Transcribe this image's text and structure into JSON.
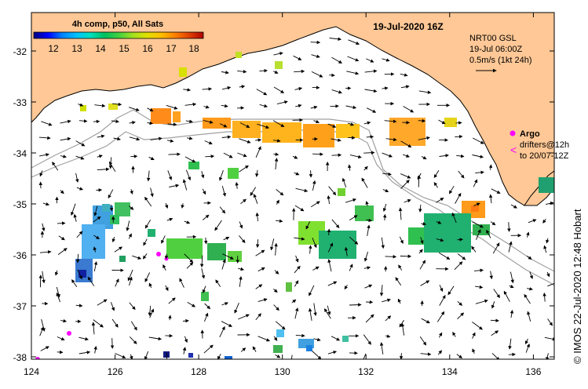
{
  "title": "19-Jul-2020 16Z",
  "legend": {
    "title": "4h comp, p50, All Sats",
    "ticks": [
      "12",
      "13",
      "14",
      "15",
      "16",
      "17",
      "18"
    ],
    "colors": [
      "#000080",
      "#0000ff",
      "#0080ff",
      "#00c0ff",
      "#00e0c0",
      "#00c060",
      "#40d040",
      "#a0e020",
      "#e0e000",
      "#ffc000",
      "#ff8000",
      "#e04000",
      "#b00000"
    ]
  },
  "product_info": {
    "line1": "NRT00 GSL",
    "line2": "19-Jul 06:00Z",
    "line3": "0.5m/s (1kt 24h)"
  },
  "argo": {
    "label": "Argo",
    "drifters_line1": "drifters@12h",
    "drifters_line2": "to 20/07-12Z",
    "marker_color": "#ff00ff"
  },
  "credit": "© IMOS 22-Jul-2020 12:48 Hobart",
  "axes": {
    "lon_min": 124,
    "lon_max": 136.5,
    "lat_min": -38.1,
    "lat_max": -31.3,
    "x_ticks": [
      "124",
      "126",
      "128",
      "130",
      "132",
      "134",
      "136"
    ],
    "y_ticks": [
      "-32",
      "-33",
      "-34",
      "-35",
      "-36",
      "-37",
      "-38"
    ]
  },
  "colors": {
    "land": "#ffc896",
    "coast": "#000000",
    "bathymetry": "#a0a0a0",
    "arrows": "#000000"
  }
}
